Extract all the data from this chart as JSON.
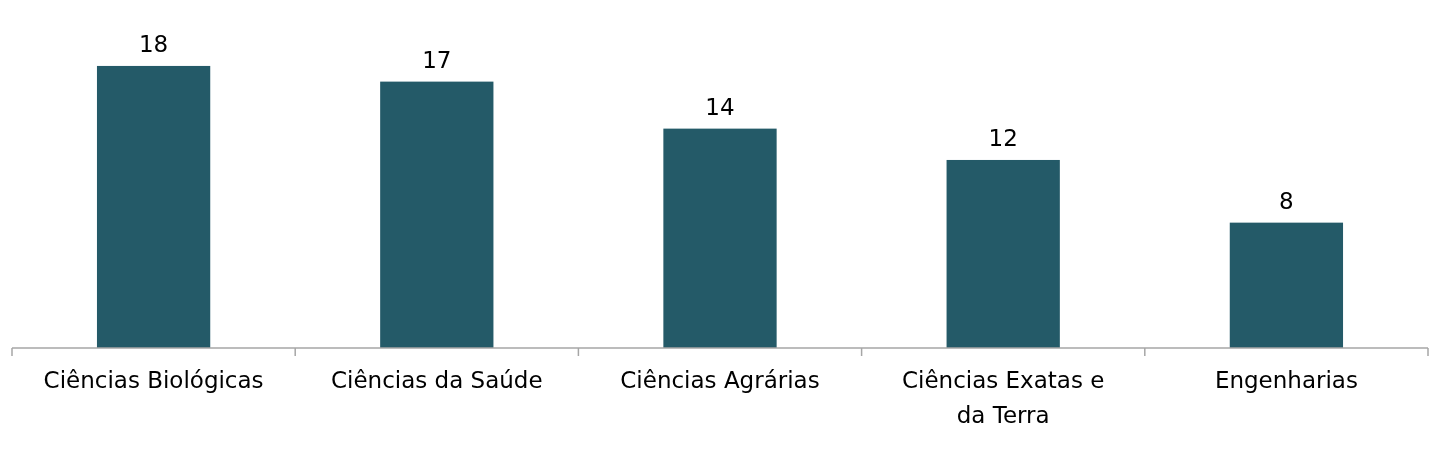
{
  "chart_data": {
    "type": "bar",
    "categories": [
      "Ciências Biológicas",
      "Ciências da Saúde",
      "Ciências Agrárias",
      "Ciências Exatas e da Terra",
      "Engenharias"
    ],
    "values": [
      18,
      17,
      14,
      12,
      8
    ],
    "color": "#245a68",
    "data_labels": true
  }
}
